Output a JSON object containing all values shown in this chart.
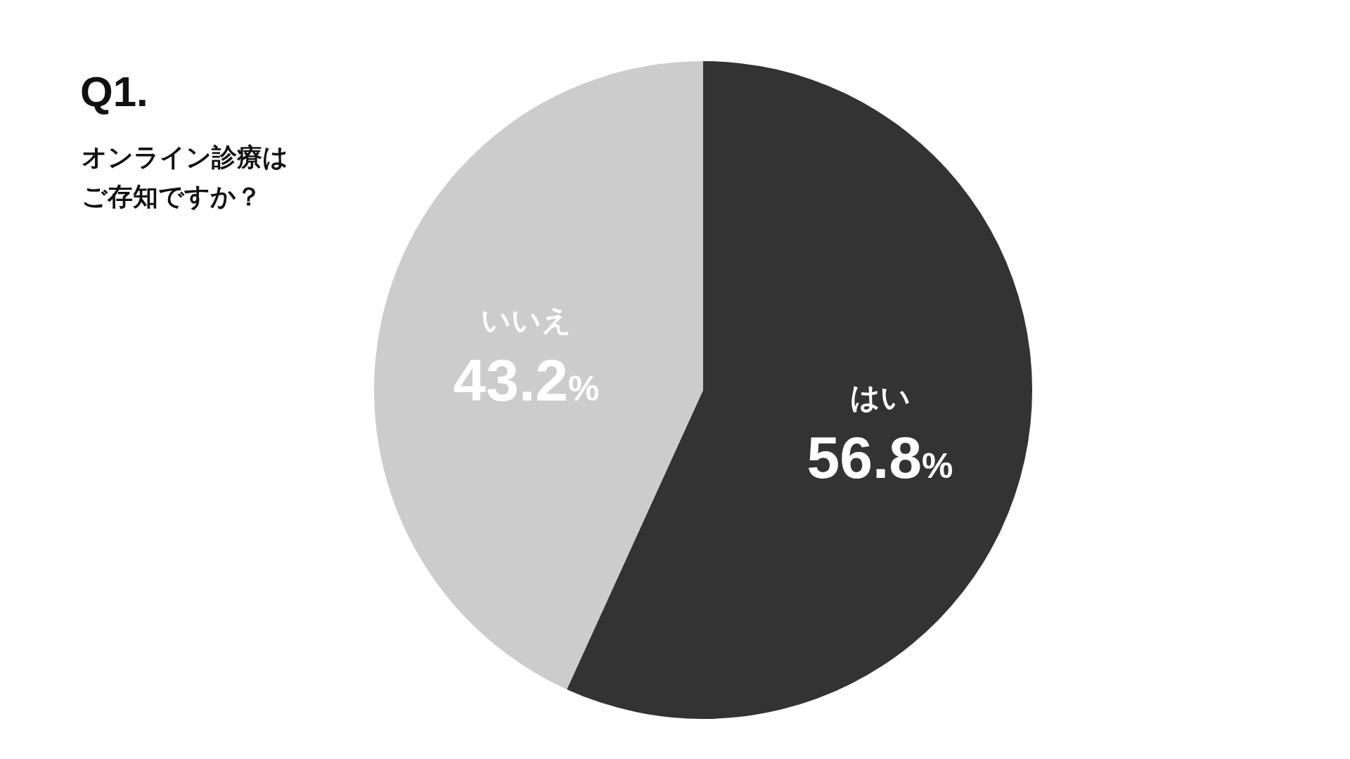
{
  "chart_data": {
    "type": "pie",
    "title": "Q1.",
    "subtitle": "オンライン診療はご存知ですか？",
    "categories": [
      "はい",
      "いいえ"
    ],
    "values": [
      56.8,
      43.2
    ],
    "value_labels": [
      "56.8%",
      "43.2%"
    ],
    "colors": [
      "#333333",
      "#cccccc"
    ]
  }
}
